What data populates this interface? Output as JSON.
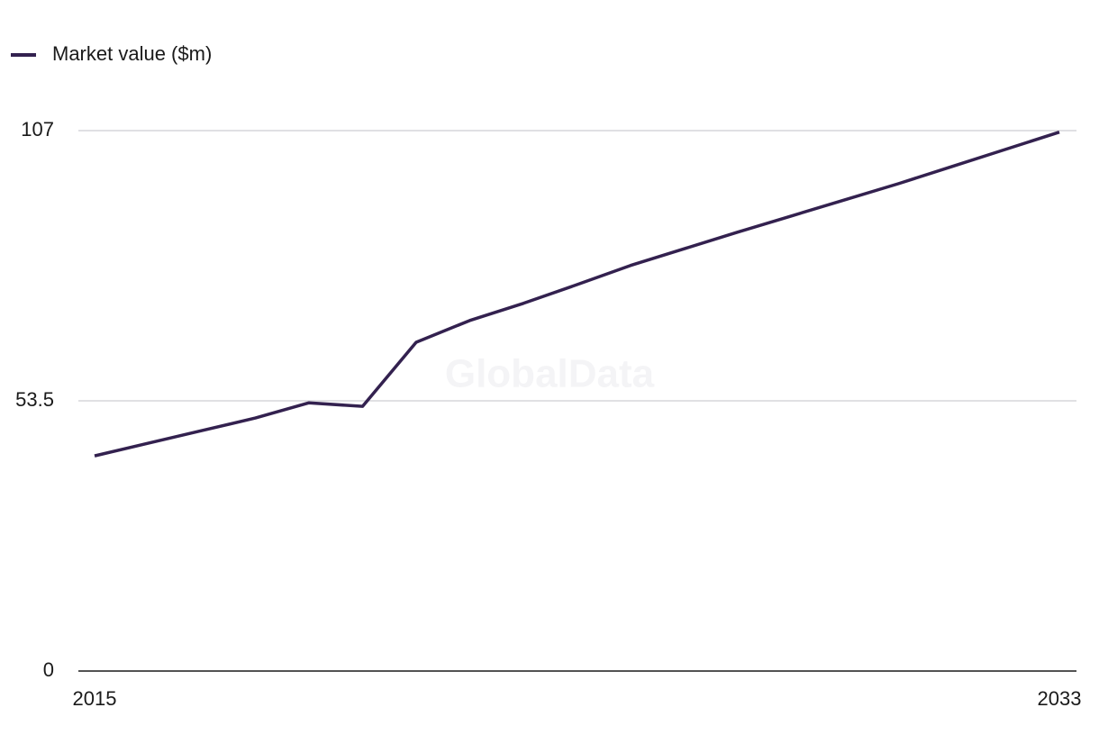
{
  "chart_data": {
    "type": "line",
    "legend_position": "top-left",
    "watermark": "GlobalData",
    "x": [
      2015,
      2016,
      2017,
      2018,
      2019,
      2020,
      2021,
      2022,
      2023,
      2024,
      2025,
      2026,
      2027,
      2028,
      2029,
      2030,
      2031,
      2032,
      2033
    ],
    "series": [
      {
        "name": "Market value ($m)",
        "color": "#33214f",
        "values": [
          42.6,
          45.1,
          47.6,
          50.1,
          53.1,
          52.4,
          65.1,
          69.4,
          72.8,
          76.5,
          80.3,
          83.6,
          86.9,
          90.1,
          93.3,
          96.5,
          99.9,
          103.3,
          106.7
        ]
      }
    ],
    "xlim": [
      2015,
      2033
    ],
    "xticks": [
      2015,
      2033
    ],
    "ylim": [
      0,
      107
    ],
    "yticks": [
      0,
      53.5,
      107
    ],
    "grid": true
  }
}
